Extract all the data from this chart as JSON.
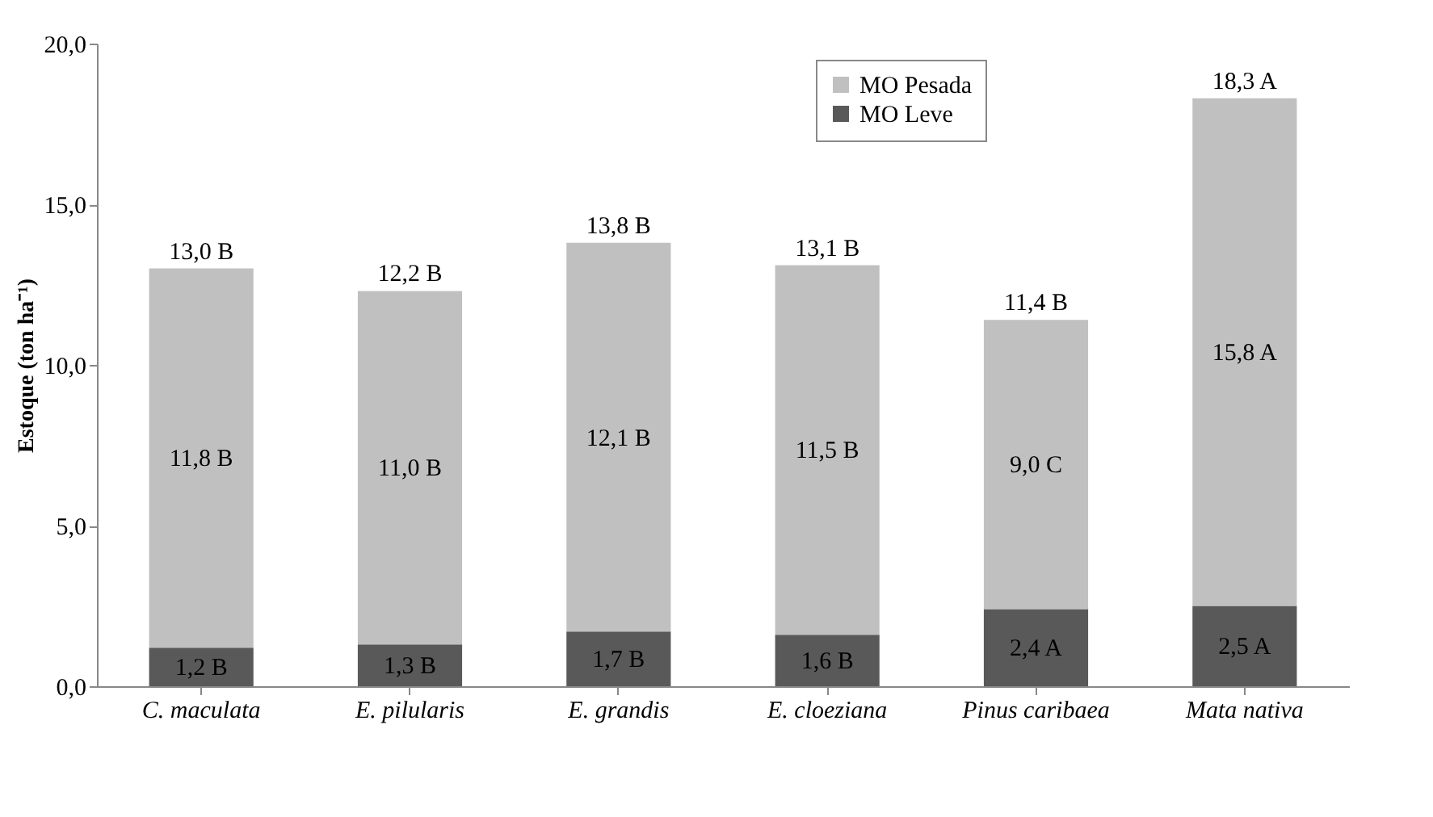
{
  "chart_data": {
    "type": "bar",
    "stacked": true,
    "ylabel": "Estoque (ton ha⁻¹)",
    "categories": [
      "C. maculata",
      "E. pilularis",
      "E. grandis",
      "E. cloeziana",
      "Pinus caribaea",
      "Mata nativa"
    ],
    "series": [
      {
        "name": "MO Leve",
        "color": "#595959",
        "values": [
          1.2,
          1.3,
          1.7,
          1.6,
          2.4,
          2.5
        ],
        "value_labels": [
          "1,2 B",
          "1,3 B",
          "1,7 B",
          "1,6 B",
          "2,4 A",
          "2,5 A"
        ]
      },
      {
        "name": "MO Pesada",
        "color": "#c0c0c0",
        "values": [
          11.8,
          11.0,
          12.1,
          11.5,
          9.0,
          15.8
        ],
        "value_labels": [
          "11,8 B",
          "11,0 B",
          "12,1 B",
          "11,5 B",
          "9,0 C",
          "15,8 A"
        ]
      }
    ],
    "totals": [
      "13,0 B",
      "12,2 B",
      "13,8 B",
      "13,1 B",
      "11,4 B",
      "18,3 A"
    ],
    "ylim": [
      0,
      20
    ],
    "yticks": [
      {
        "value": 0,
        "label": "0,0"
      },
      {
        "value": 5,
        "label": "5,0"
      },
      {
        "value": 10,
        "label": "10,0"
      },
      {
        "value": 15,
        "label": "15,0"
      },
      {
        "value": 20,
        "label": "20,0"
      }
    ],
    "grid": false,
    "legend": "top right"
  }
}
